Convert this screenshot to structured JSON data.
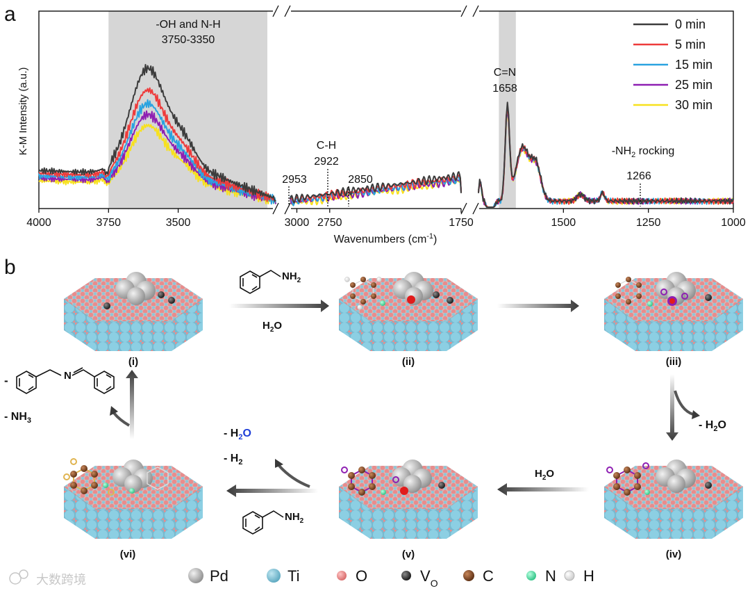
{
  "panel_a": {
    "label": "a",
    "chart_data": {
      "type": "line",
      "xlabel": "Wavenumbers (cm",
      "xlabel_sup": "-1",
      "xlabel_close": ")",
      "ylabel": "K-M Intensity (a.u.)",
      "x_ticks": [
        "4000",
        "3750",
        "3500",
        "3000",
        "2750",
        "1750",
        "1500",
        "1250",
        "1000"
      ],
      "segments": [
        {
          "xlim": [
            4000,
            3150
          ]
        },
        {
          "xlim": [
            3050,
            1750
          ]
        },
        {
          "xlim": [
            1750,
            1000
          ]
        }
      ],
      "series": [
        {
          "name": "0 min",
          "color": "#3c3c3c",
          "scale": 1.0
        },
        {
          "name": "5 min",
          "color": "#ee3b3b",
          "scale": 0.84
        },
        {
          "name": "15 min",
          "color": "#2aa3e0",
          "scale": 0.74
        },
        {
          "name": "25 min",
          "color": "#8e1fb2",
          "scale": 0.66
        },
        {
          "name": "30 min",
          "color": "#f7e11e",
          "scale": 0.58
        }
      ],
      "shaded_bands": [
        [
          3750,
          3180
        ],
        [
          1690,
          1640
        ]
      ],
      "annotations": [
        {
          "line1": "-OH and N-H",
          "line2": "3750-3350"
        },
        {
          "line1": "C-H",
          "line2": "2922"
        },
        {
          "label": "2953",
          "x": 2953
        },
        {
          "label": "2922",
          "x": 2922
        },
        {
          "label": "2850",
          "x": 2850
        },
        {
          "line1": "C=N",
          "line2": "1658"
        },
        {
          "line1a": "-NH",
          "sub": "2",
          "line1b": " rocking",
          "line2": "1266",
          "x": 1266
        }
      ]
    }
  },
  "panel_b": {
    "label": "b",
    "stages": [
      "(i)",
      "(ii)",
      "(iii)",
      "(iv)",
      "(v)",
      "(vi)"
    ],
    "arrow1_top": "NH",
    "arrow1_top_sub": "2",
    "arrow1_bottom": "H",
    "arrow1_bottom_sub": "2",
    "arrow1_bottom_tail": "O",
    "arrow3_byproduct": "- H",
    "arrow3_byproduct_sub": "2",
    "arrow3_byproduct_tail": "O",
    "arrow4_label": "H",
    "arrow4_label_sub": "2",
    "arrow4_label_tail": "O",
    "arrow5_product1": "- H",
    "arrow5_product1_sub": "2",
    "arrow5_product1_tail": "O",
    "arrow5_product2": "- H",
    "arrow5_product2_sub": "2",
    "arrow5_reactant": "NH",
    "arrow5_reactant_sub": "2",
    "imine_dash": "-",
    "imine_N": "N",
    "nh3_text": "- NH",
    "nh3_sub": "3",
    "accent_blue": "#1f3fd8"
  },
  "legend": [
    {
      "label": "Pd",
      "color": "#b5b5b5"
    },
    {
      "label": "Ti",
      "color": "#7cc3d9"
    },
    {
      "label": "O",
      "color": "#ea8c8c"
    },
    {
      "label": "V",
      "sub": "O",
      "color": "#3a3a3a"
    },
    {
      "label": "C",
      "color": "#8a4b25"
    },
    {
      "label": "N",
      "color": "#54e0a6"
    },
    {
      "label": "H",
      "color": "#ffffff"
    }
  ],
  "watermark": "大数跨境"
}
